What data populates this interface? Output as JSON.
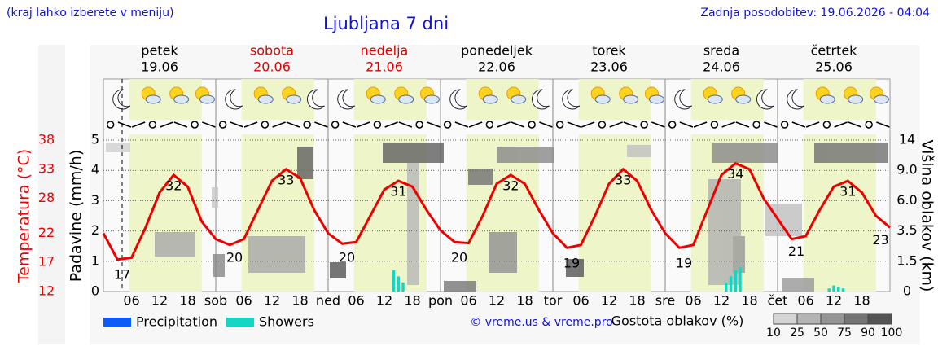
{
  "header": {
    "note": "(kraj lahko izberete v meniju)",
    "updated": "Zadnja posodobitev: 19.06.2026 - 04:04"
  },
  "chart_data": {
    "type": "line",
    "title": "Ljubljana 7 dni",
    "credit": "© vreme.us & vreme.pro",
    "y_label": "Temperatura (°C)",
    "y_precip_label": "Padavine (mm/h)",
    "y2_label": "Višina oblakov (km)",
    "days": [
      {
        "name": "petek",
        "date": "19.06",
        "color": "#000000"
      },
      {
        "name": "sobota",
        "date": "20.06",
        "color": "#e00000"
      },
      {
        "name": "nedelja",
        "date": "21.06",
        "color": "#e00000"
      },
      {
        "name": "ponedeljek",
        "date": "22.06",
        "color": "#000000"
      },
      {
        "name": "torek",
        "date": "23.06",
        "color": "#000000"
      },
      {
        "name": "sreda",
        "date": "24.06",
        "color": "#000000"
      },
      {
        "name": "četrtek",
        "date": "25.06",
        "color": "#000000"
      }
    ],
    "xlim": [
      0,
      168
    ],
    "xticks": [
      {
        "value": 6,
        "label": "06"
      },
      {
        "value": 12,
        "label": "12"
      },
      {
        "value": 18,
        "label": "18"
      },
      {
        "value": 24,
        "label": "sob"
      },
      {
        "value": 30,
        "label": "06"
      },
      {
        "value": 36,
        "label": "12"
      },
      {
        "value": 42,
        "label": "18"
      },
      {
        "value": 48,
        "label": "ned"
      },
      {
        "value": 54,
        "label": "06"
      },
      {
        "value": 60,
        "label": "12"
      },
      {
        "value": 66,
        "label": "18"
      },
      {
        "value": 72,
        "label": "pon"
      },
      {
        "value": 78,
        "label": "06"
      },
      {
        "value": 84,
        "label": "12"
      },
      {
        "value": 90,
        "label": "18"
      },
      {
        "value": 96,
        "label": "tor"
      },
      {
        "value": 102,
        "label": "06"
      },
      {
        "value": 108,
        "label": "12"
      },
      {
        "value": 114,
        "label": "18"
      },
      {
        "value": 120,
        "label": "sre"
      },
      {
        "value": 126,
        "label": "06"
      },
      {
        "value": 132,
        "label": "12"
      },
      {
        "value": 138,
        "label": "18"
      },
      {
        "value": 144,
        "label": "čet"
      },
      {
        "value": 150,
        "label": "06"
      },
      {
        "value": 156,
        "label": "12"
      },
      {
        "value": 162,
        "label": "18"
      }
    ],
    "x": [
      0,
      3,
      6,
      9,
      12,
      15,
      18,
      21,
      24,
      27,
      30,
      33,
      36,
      39,
      42,
      45,
      48,
      51,
      54,
      57,
      60,
      63,
      66,
      69,
      72,
      75,
      78,
      81,
      84,
      87,
      90,
      93,
      96,
      99,
      102,
      105,
      108,
      111,
      114,
      117,
      120,
      123,
      126,
      129,
      132,
      135,
      138,
      141,
      144,
      147,
      150,
      153,
      156,
      159,
      162,
      165,
      168
    ],
    "ylim": [
      12,
      38
    ],
    "yticks": [
      12,
      17,
      22,
      28,
      33,
      38
    ],
    "precip_ylim": [
      0,
      5
    ],
    "precip_yticks": [
      0,
      1,
      2,
      3,
      4,
      5
    ],
    "y2_scale": "piecewise",
    "y2ticks": [
      0,
      1.5,
      3.5,
      {
        "value": 6,
        "label": "6.0"
      },
      {
        "value": 9,
        "label": "9.0"
      },
      14
    ],
    "grid": true,
    "series": [
      {
        "name": "Temperatura",
        "color": "#ee0000",
        "values": [
          22,
          17.5,
          17.8,
          23,
          29,
          32,
          30,
          24,
          21,
          20,
          21,
          26,
          31,
          33,
          31.5,
          26,
          22,
          20.2,
          20.5,
          25,
          29.5,
          31,
          30,
          26,
          22.5,
          20.5,
          20.3,
          25,
          30.5,
          32,
          30.5,
          26,
          22,
          19.5,
          20,
          25,
          30.5,
          33,
          31,
          26,
          22,
          19.5,
          20,
          26,
          32,
          34,
          33,
          28,
          24.5,
          21,
          21.5,
          26,
          30,
          31,
          29,
          25,
          23
        ]
      }
    ],
    "temp_labels": [
      {
        "x": 4,
        "value": 17
      },
      {
        "x": 15,
        "value": 32
      },
      {
        "x": 28,
        "value": 20
      },
      {
        "x": 39,
        "value": 33
      },
      {
        "x": 52,
        "value": 20
      },
      {
        "x": 63,
        "value": 31
      },
      {
        "x": 76,
        "value": 20
      },
      {
        "x": 87,
        "value": 32
      },
      {
        "x": 100,
        "value": 19
      },
      {
        "x": 111,
        "value": 33
      },
      {
        "x": 124,
        "value": 19
      },
      {
        "x": 135,
        "value": 34
      },
      {
        "x": 148,
        "value": 21
      },
      {
        "x": 159,
        "value": 31
      },
      {
        "x": 166,
        "value": 23
      }
    ],
    "precipitation": {
      "name": "Precipitation",
      "color": "#0a5cf5",
      "x": [],
      "values": []
    },
    "showers": {
      "name": "Showers",
      "color": "#14d6c4",
      "x": [
        62,
        63,
        64,
        133,
        134,
        135,
        136,
        155,
        156,
        157,
        158
      ],
      "values": [
        0.7,
        0.5,
        0.3,
        0.3,
        0.5,
        0.7,
        0.8,
        0.1,
        0.2,
        0.15,
        0.1
      ]
    },
    "cloud_legend": {
      "title": "Gostota oblakov (%)",
      "levels": [
        10,
        25,
        50,
        75,
        90,
        100
      ],
      "colors": [
        "#d4d4d4",
        "#b4b4b4",
        "#949494",
        "#747474",
        "#545454"
      ]
    }
  }
}
